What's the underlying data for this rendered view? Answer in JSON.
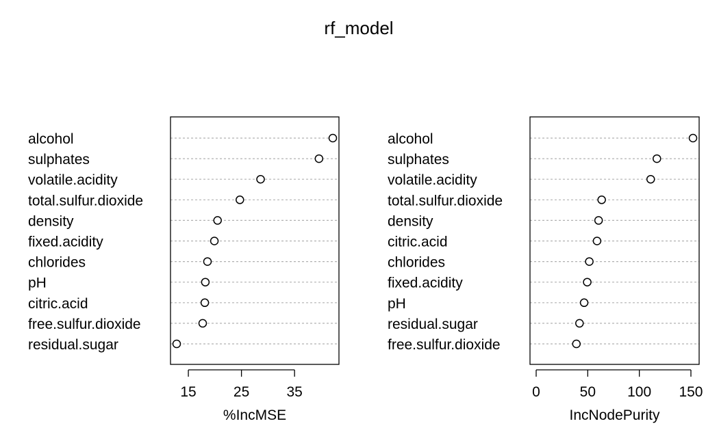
{
  "title": "rf_model",
  "chart_data": [
    {
      "type": "scatter",
      "xlabel": "%IncMSE",
      "categories": [
        "alcohol",
        "sulphates",
        "volatile.acidity",
        "total.sulfur.dioxide",
        "density",
        "fixed.acidity",
        "chlorides",
        "pH",
        "citric.acid",
        "free.sulfur.dioxide",
        "residual.sugar"
      ],
      "values": [
        42.2,
        39.6,
        28.6,
        24.7,
        20.5,
        19.9,
        18.6,
        18.2,
        18.1,
        17.7,
        12.8
      ],
      "xticks": [
        15,
        25,
        35
      ],
      "xlim": [
        12.8,
        42.2
      ],
      "grid": "dotted"
    },
    {
      "type": "scatter",
      "xlabel": "IncNodePurity",
      "categories": [
        "alcohol",
        "sulphates",
        "volatile.acidity",
        "total.sulfur.dioxide",
        "density",
        "citric.acid",
        "chlorides",
        "fixed.acidity",
        "pH",
        "residual.sugar",
        "free.sulfur.dioxide"
      ],
      "values": [
        152,
        117,
        111,
        63.5,
        60.5,
        59,
        51.5,
        49.5,
        46.5,
        42,
        39
      ],
      "xticks": [
        0,
        50,
        100,
        150
      ],
      "xlim": [
        0,
        152
      ],
      "grid": "dotted"
    }
  ]
}
